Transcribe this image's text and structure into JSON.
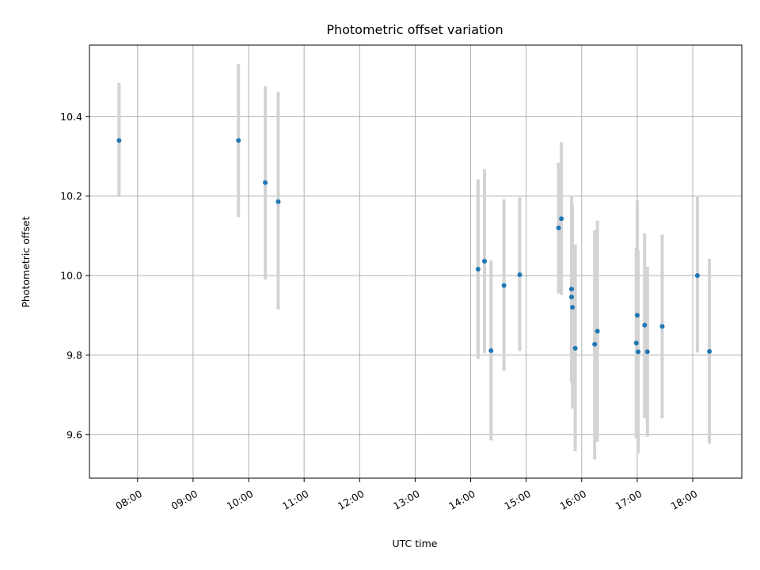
{
  "chart_data": {
    "type": "scatter",
    "title": "Photometric offset variation",
    "xlabel": "UTC time",
    "ylabel": "Photometric offset",
    "xlim": [
      "07:08",
      "18:53"
    ],
    "ylim": [
      9.49,
      10.58
    ],
    "xticks": [
      "08:00",
      "09:00",
      "10:00",
      "11:00",
      "12:00",
      "13:00",
      "14:00",
      "15:00",
      "16:00",
      "17:00",
      "18:00"
    ],
    "yticks": [
      9.6,
      9.8,
      10.0,
      10.2,
      10.4
    ],
    "ytick_labels": [
      "9.6",
      "9.8",
      "10.0",
      "10.2",
      "10.4"
    ],
    "grid": true,
    "colors": {
      "point": "#1f77b4",
      "errorbar": "#d3d3d3"
    },
    "points": [
      {
        "x": "07:40",
        "y": 10.34,
        "ylow": 10.2,
        "yhigh": 10.485
      },
      {
        "x": "09:49",
        "y": 10.34,
        "ylow": 10.147,
        "yhigh": 10.533
      },
      {
        "x": "10:18",
        "y": 10.234,
        "ylow": 9.99,
        "yhigh": 10.477
      },
      {
        "x": "10:32",
        "y": 10.186,
        "ylow": 9.915,
        "yhigh": 10.462
      },
      {
        "x": "14:08",
        "y": 10.016,
        "ylow": 9.79,
        "yhigh": 10.242
      },
      {
        "x": "14:15",
        "y": 10.036,
        "ylow": 9.805,
        "yhigh": 10.268
      },
      {
        "x": "14:22",
        "y": 9.811,
        "ylow": 9.585,
        "yhigh": 10.038
      },
      {
        "x": "14:36",
        "y": 9.975,
        "ylow": 9.76,
        "yhigh": 10.192
      },
      {
        "x": "14:53",
        "y": 10.002,
        "ylow": 9.81,
        "yhigh": 10.197
      },
      {
        "x": "15:35",
        "y": 10.12,
        "ylow": 9.955,
        "yhigh": 10.284
      },
      {
        "x": "15:38",
        "y": 10.143,
        "ylow": 9.951,
        "yhigh": 10.336
      },
      {
        "x": "15:49",
        "y": 9.966,
        "ylow": 9.732,
        "yhigh": 10.2
      },
      {
        "x": "15:49",
        "y": 9.946,
        "ylow": 9.73,
        "yhigh": 10.165
      },
      {
        "x": "15:50",
        "y": 9.92,
        "ylow": 9.665,
        "yhigh": 10.178
      },
      {
        "x": "15:53",
        "y": 9.817,
        "ylow": 9.558,
        "yhigh": 10.078
      },
      {
        "x": "16:14",
        "y": 9.827,
        "ylow": 9.537,
        "yhigh": 10.114
      },
      {
        "x": "16:17",
        "y": 9.86,
        "ylow": 9.582,
        "yhigh": 10.138
      },
      {
        "x": "16:59",
        "y": 9.83,
        "ylow": 9.59,
        "yhigh": 10.071
      },
      {
        "x": "17:00",
        "y": 9.9,
        "ylow": 9.608,
        "yhigh": 10.19
      },
      {
        "x": "17:01",
        "y": 9.808,
        "ylow": 9.553,
        "yhigh": 10.063
      },
      {
        "x": "17:08",
        "y": 9.875,
        "ylow": 9.641,
        "yhigh": 10.107
      },
      {
        "x": "17:11",
        "y": 9.808,
        "ylow": 9.594,
        "yhigh": 10.022
      },
      {
        "x": "17:27",
        "y": 9.872,
        "ylow": 9.641,
        "yhigh": 10.103
      },
      {
        "x": "18:05",
        "y": 10.0,
        "ylow": 9.806,
        "yhigh": 10.198
      },
      {
        "x": "18:18",
        "y": 9.809,
        "ylow": 9.577,
        "yhigh": 10.042
      }
    ]
  }
}
